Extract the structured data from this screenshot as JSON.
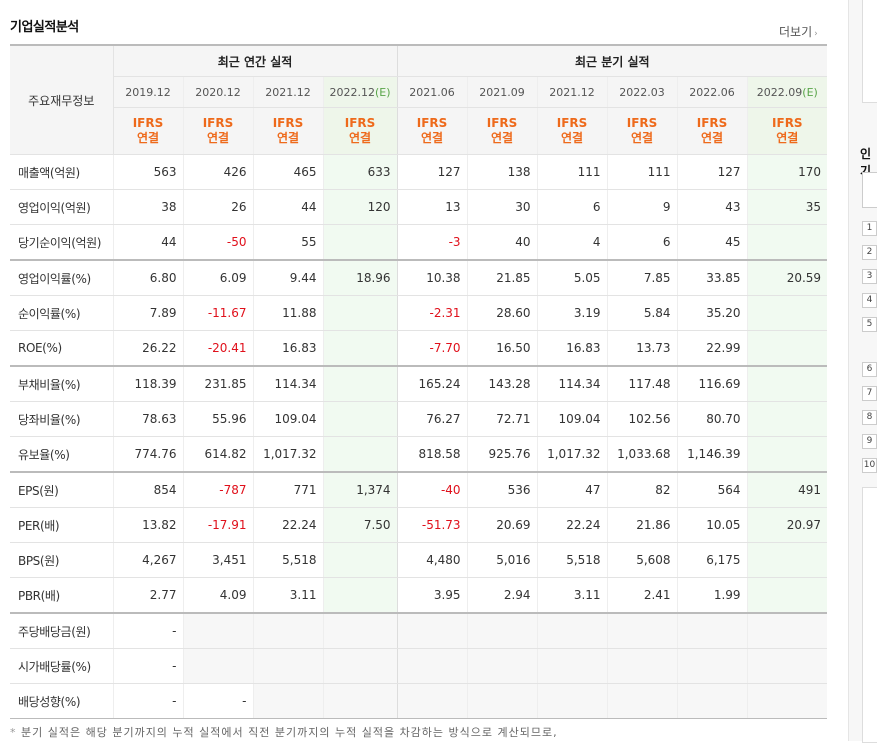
{
  "header": {
    "title": "기업실적분석",
    "more_label": "더보기",
    "more_chev": "›"
  },
  "table": {
    "corner_label": "주요재무정보",
    "annual_group": "최근 연간 실적",
    "quarter_group": "최근 분기 실적",
    "periods": [
      {
        "label": "2019.12",
        "est": ""
      },
      {
        "label": "2020.12",
        "est": ""
      },
      {
        "label": "2021.12",
        "est": ""
      },
      {
        "label": "2022.12",
        "est": "(E)"
      },
      {
        "label": "2021.06",
        "est": ""
      },
      {
        "label": "2021.09",
        "est": ""
      },
      {
        "label": "2021.12",
        "est": ""
      },
      {
        "label": "2022.03",
        "est": ""
      },
      {
        "label": "2022.06",
        "est": ""
      },
      {
        "label": "2022.09",
        "est": "(E)"
      }
    ],
    "ifrs_top": "IFRS",
    "ifrs_bottom": "연결",
    "rows": [
      {
        "label": "매출액(억원)",
        "values": [
          "563",
          "426",
          "465",
          "633",
          "127",
          "138",
          "111",
          "111",
          "127",
          "170"
        ]
      },
      {
        "label": "영업이익(억원)",
        "values": [
          "38",
          "26",
          "44",
          "120",
          "13",
          "30",
          "6",
          "9",
          "43",
          "35"
        ]
      },
      {
        "label": "당기순이익(억원)",
        "values": [
          "44",
          "-50",
          "55",
          "",
          "-3",
          "40",
          "4",
          "6",
          "45",
          ""
        ]
      },
      {
        "label": "영업이익률(%)",
        "values": [
          "6.80",
          "6.09",
          "9.44",
          "18.96",
          "10.38",
          "21.85",
          "5.05",
          "7.85",
          "33.85",
          "20.59"
        ]
      },
      {
        "label": "순이익률(%)",
        "values": [
          "7.89",
          "-11.67",
          "11.88",
          "",
          "-2.31",
          "28.60",
          "3.19",
          "5.84",
          "35.20",
          ""
        ]
      },
      {
        "label": "ROE(%)",
        "values": [
          "26.22",
          "-20.41",
          "16.83",
          "",
          "-7.70",
          "16.50",
          "16.83",
          "13.73",
          "22.99",
          ""
        ]
      },
      {
        "label": "부채비율(%)",
        "values": [
          "118.39",
          "231.85",
          "114.34",
          "",
          "165.24",
          "143.28",
          "114.34",
          "117.48",
          "116.69",
          ""
        ]
      },
      {
        "label": "당좌비율(%)",
        "values": [
          "78.63",
          "55.96",
          "109.04",
          "",
          "76.27",
          "72.71",
          "109.04",
          "102.56",
          "80.70",
          ""
        ]
      },
      {
        "label": "유보율(%)",
        "values": [
          "774.76",
          "614.82",
          "1,017.32",
          "",
          "818.58",
          "925.76",
          "1,017.32",
          "1,033.68",
          "1,146.39",
          ""
        ]
      },
      {
        "label": "EPS(원)",
        "values": [
          "854",
          "-787",
          "771",
          "1,374",
          "-40",
          "536",
          "47",
          "82",
          "564",
          "491"
        ]
      },
      {
        "label": "PER(배)",
        "values": [
          "13.82",
          "-17.91",
          "22.24",
          "7.50",
          "-51.73",
          "20.69",
          "22.24",
          "21.86",
          "10.05",
          "20.97"
        ]
      },
      {
        "label": "BPS(원)",
        "values": [
          "4,267",
          "3,451",
          "5,518",
          "",
          "4,480",
          "5,016",
          "5,518",
          "5,608",
          "6,175",
          ""
        ]
      },
      {
        "label": "PBR(배)",
        "values": [
          "2.77",
          "4.09",
          "3.11",
          "",
          "3.95",
          "2.94",
          "3.11",
          "2.41",
          "1.99",
          ""
        ]
      },
      {
        "label": "주당배당금(원)",
        "values": [
          "-",
          null,
          null,
          null,
          null,
          null,
          null,
          null,
          null,
          null
        ]
      },
      {
        "label": "시가배당률(%)",
        "values": [
          "-",
          null,
          null,
          null,
          null,
          null,
          null,
          null,
          null,
          null
        ]
      },
      {
        "label": "배당성향(%)",
        "values": [
          "-",
          "-",
          null,
          null,
          null,
          null,
          null,
          null,
          null,
          null
        ]
      }
    ],
    "separators_before_rows": [
      3,
      6,
      9,
      13
    ]
  },
  "note": "분기 실적은 해당 분기까지의 누적 실적에서 직전 분기까지의 누적 실적을 차감하는 방식으로 계산되므로,",
  "note_bullet": "*",
  "right_panel": {
    "label": "인기",
    "numbers": [
      "1",
      "2",
      "3",
      "4",
      "5",
      "6",
      "7",
      "8",
      "9",
      "10"
    ]
  }
}
